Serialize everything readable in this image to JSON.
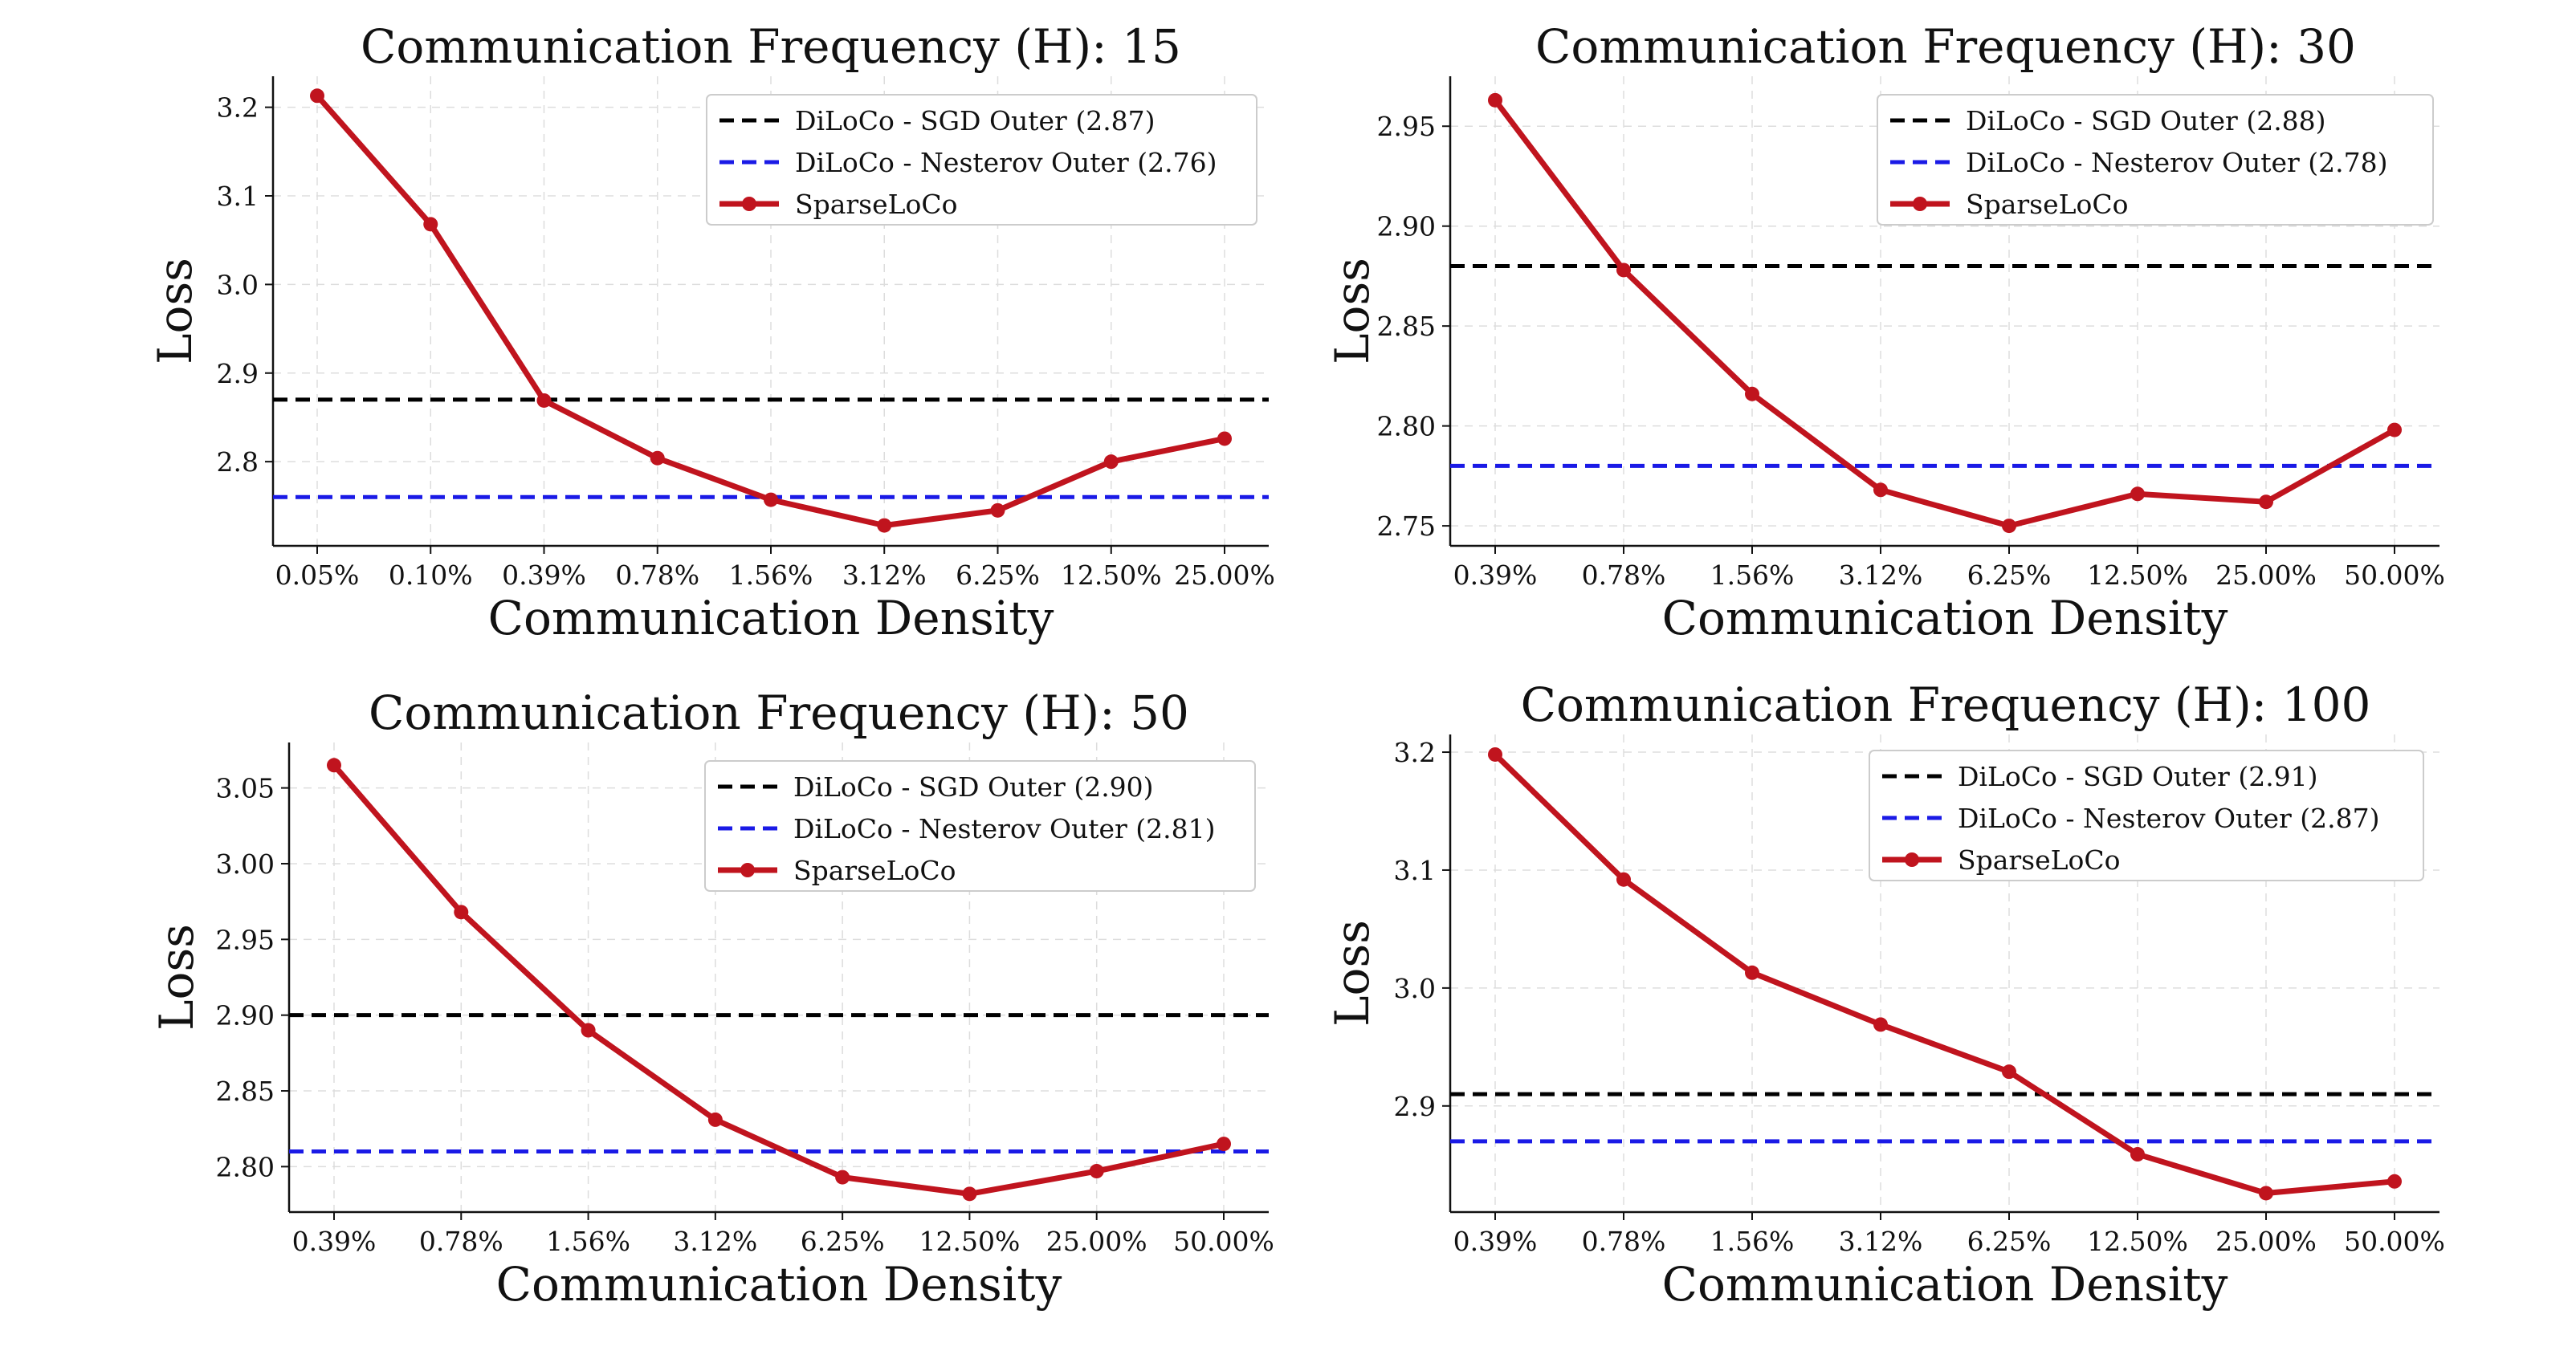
{
  "colors": {
    "sgd": "#000000",
    "nesterov": "#1a1ae6",
    "sparse": "#c0141e"
  },
  "legend_labels": {
    "sgd_prefix": "DiLoCo - SGD Outer",
    "nesterov_prefix": "DiLoCo - Nesterov Outer",
    "sparse": "SparseLoCo"
  },
  "chart_data": [
    {
      "type": "line",
      "title": "Communication Frequency (H): 15",
      "xlabel": "Communication Density",
      "ylabel": "Loss",
      "categories": [
        "0.05%",
        "0.10%",
        "0.39%",
        "0.78%",
        "1.56%",
        "3.12%",
        "6.25%",
        "12.50%",
        "25.00%"
      ],
      "ylim": [
        2.705,
        3.235
      ],
      "yticks": [
        2.8,
        2.9,
        3.0,
        3.1,
        3.2
      ],
      "ytick_labels": [
        "2.8",
        "2.9",
        "3.0",
        "3.1",
        "3.2"
      ],
      "series": [
        {
          "name": "SparseLoCo",
          "values": [
            3.213,
            3.068,
            2.869,
            2.804,
            2.757,
            2.728,
            2.745,
            2.8,
            2.826
          ]
        }
      ],
      "reference_lines": [
        {
          "name": "DiLoCo - SGD Outer",
          "value": 2.87,
          "label": "DiLoCo - SGD Outer (2.87)"
        },
        {
          "name": "DiLoCo - Nesterov Outer",
          "value": 2.76,
          "label": "DiLoCo - Nesterov Outer (2.76)"
        }
      ],
      "legend": "top-right"
    },
    {
      "type": "line",
      "title": "Communication Frequency (H): 30",
      "xlabel": "Communication Density",
      "ylabel": "Loss",
      "categories": [
        "0.39%",
        "0.78%",
        "1.56%",
        "3.12%",
        "6.25%",
        "12.50%",
        "25.00%",
        "50.00%"
      ],
      "ylim": [
        2.74,
        2.975
      ],
      "yticks": [
        2.75,
        2.8,
        2.85,
        2.9,
        2.95
      ],
      "ytick_labels": [
        "2.75",
        "2.80",
        "2.85",
        "2.90",
        "2.95"
      ],
      "series": [
        {
          "name": "SparseLoCo",
          "values": [
            2.963,
            2.878,
            2.816,
            2.768,
            2.75,
            2.766,
            2.762,
            2.798
          ]
        }
      ],
      "reference_lines": [
        {
          "name": "DiLoCo - SGD Outer",
          "value": 2.88,
          "label": "DiLoCo - SGD Outer (2.88)"
        },
        {
          "name": "DiLoCo - Nesterov Outer",
          "value": 2.78,
          "label": "DiLoCo - Nesterov Outer (2.78)"
        }
      ],
      "legend": "top-right"
    },
    {
      "type": "line",
      "title": "Communication Frequency (H): 50",
      "xlabel": "Communication Density",
      "ylabel": "Loss",
      "categories": [
        "0.39%",
        "0.78%",
        "1.56%",
        "3.12%",
        "6.25%",
        "12.50%",
        "25.00%",
        "50.00%"
      ],
      "ylim": [
        2.77,
        3.08
      ],
      "yticks": [
        2.8,
        2.85,
        2.9,
        2.95,
        3.0,
        3.05
      ],
      "ytick_labels": [
        "2.80",
        "2.85",
        "2.90",
        "2.95",
        "3.00",
        "3.05"
      ],
      "series": [
        {
          "name": "SparseLoCo",
          "values": [
            3.065,
            2.968,
            2.89,
            2.831,
            2.793,
            2.782,
            2.797,
            2.815
          ]
        }
      ],
      "reference_lines": [
        {
          "name": "DiLoCo - SGD Outer",
          "value": 2.9,
          "label": "DiLoCo - SGD Outer (2.90)"
        },
        {
          "name": "DiLoCo - Nesterov Outer",
          "value": 2.81,
          "label": "DiLoCo - Nesterov Outer (2.81)"
        }
      ],
      "legend": "top-right"
    },
    {
      "type": "line",
      "title": "Communication Frequency (H): 100",
      "xlabel": "Communication Density",
      "ylabel": "Loss",
      "categories": [
        "0.39%",
        "0.78%",
        "1.56%",
        "3.12%",
        "6.25%",
        "12.50%",
        "25.00%",
        "50.00%"
      ],
      "ylim": [
        2.81,
        3.215
      ],
      "yticks": [
        2.9,
        3.0,
        3.1,
        3.2
      ],
      "ytick_labels": [
        "2.9",
        "3.0",
        "3.1",
        "3.2"
      ],
      "series": [
        {
          "name": "SparseLoCo",
          "values": [
            3.198,
            3.092,
            3.013,
            2.969,
            2.929,
            2.859,
            2.826,
            2.836
          ]
        }
      ],
      "reference_lines": [
        {
          "name": "DiLoCo - SGD Outer",
          "value": 2.91,
          "label": "DiLoCo - SGD Outer (2.91)"
        },
        {
          "name": "DiLoCo - Nesterov Outer",
          "value": 2.87,
          "label": "DiLoCo - Nesterov Outer (2.87)"
        }
      ],
      "legend": "top-right"
    }
  ]
}
